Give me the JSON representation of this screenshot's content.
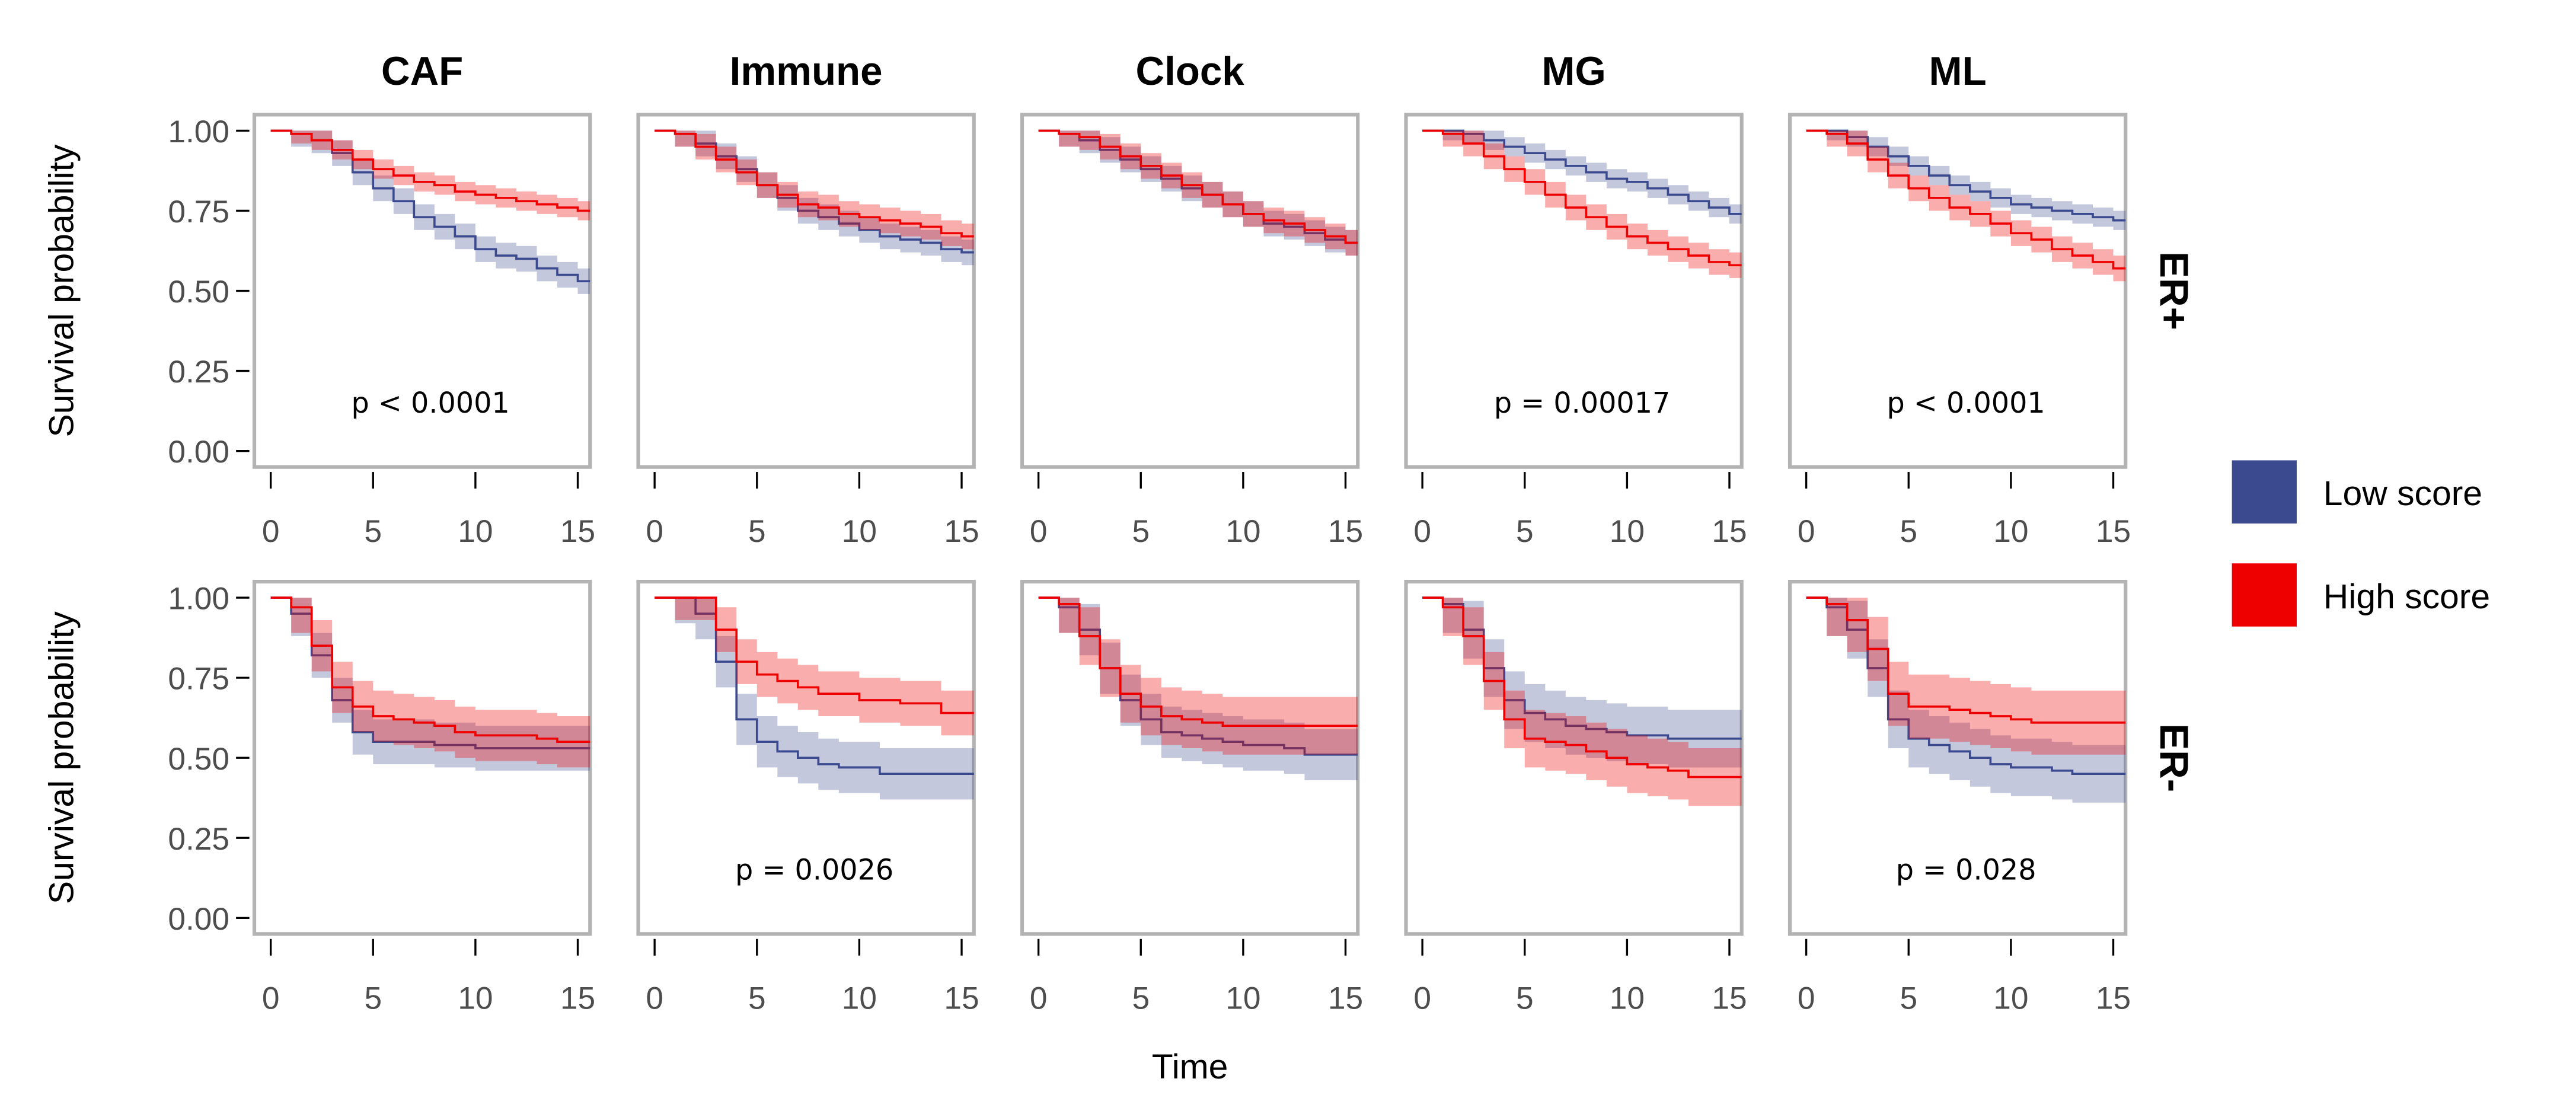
{
  "chart_data": {
    "type": "line",
    "subtype": "kaplan-meier-grid",
    "xlabel": "Time",
    "ylabel": "Survival probability",
    "xlim": [
      -0.8,
      15.6
    ],
    "ylim": [
      -0.05,
      1.05
    ],
    "x_ticks": [
      "0",
      "5",
      "10",
      "15"
    ],
    "x_tick_values": [
      0,
      5,
      10,
      15
    ],
    "y_ticks": [
      "1.00",
      "0.75",
      "0.50",
      "0.25",
      "0.00"
    ],
    "y_tick_values": [
      1.0,
      0.75,
      0.5,
      0.25,
      0.0
    ],
    "columns": [
      "CAF",
      "Immune",
      "Clock",
      "MG",
      "ML"
    ],
    "rows": [
      "ER+",
      "ER-"
    ],
    "legend": {
      "placement": "right",
      "entries": [
        {
          "label": "Low score",
          "color": "#3B4A8F"
        },
        {
          "label": "High score",
          "color": "#EE0000"
        }
      ]
    },
    "times": [
      0,
      1,
      2,
      3,
      4,
      5,
      6,
      7,
      8,
      9,
      10,
      11,
      12,
      13,
      14,
      15,
      15.8
    ],
    "panels": [
      {
        "row": "ER+",
        "col": "CAF",
        "pvalue": "p < 0.0001",
        "low": {
          "values": [
            1,
            0.99,
            0.97,
            0.93,
            0.87,
            0.82,
            0.78,
            0.73,
            0.7,
            0.67,
            0.63,
            0.61,
            0.6,
            0.57,
            0.55,
            0.53,
            0.52
          ],
          "ci": 0.04
        },
        "high": {
          "values": [
            1,
            0.99,
            0.97,
            0.94,
            0.91,
            0.88,
            0.86,
            0.84,
            0.83,
            0.81,
            0.8,
            0.79,
            0.78,
            0.77,
            0.76,
            0.75,
            0.75
          ],
          "ci": 0.03
        }
      },
      {
        "row": "ER+",
        "col": "Immune",
        "pvalue": "",
        "low": {
          "values": [
            1,
            0.99,
            0.96,
            0.92,
            0.88,
            0.83,
            0.79,
            0.75,
            0.73,
            0.71,
            0.69,
            0.67,
            0.66,
            0.65,
            0.63,
            0.62,
            0.61
          ],
          "ci": 0.04
        },
        "high": {
          "values": [
            1,
            0.99,
            0.95,
            0.91,
            0.87,
            0.83,
            0.8,
            0.77,
            0.76,
            0.74,
            0.73,
            0.72,
            0.71,
            0.7,
            0.68,
            0.67,
            0.66
          ],
          "ci": 0.04
        }
      },
      {
        "row": "ER+",
        "col": "Clock",
        "pvalue": "",
        "low": {
          "values": [
            1,
            0.99,
            0.97,
            0.94,
            0.91,
            0.88,
            0.85,
            0.82,
            0.8,
            0.77,
            0.74,
            0.71,
            0.7,
            0.68,
            0.66,
            0.65,
            0.64
          ],
          "ci": 0.04
        },
        "high": {
          "values": [
            1,
            0.99,
            0.98,
            0.95,
            0.92,
            0.89,
            0.86,
            0.83,
            0.8,
            0.77,
            0.74,
            0.72,
            0.71,
            0.69,
            0.67,
            0.65,
            0.63
          ],
          "ci": 0.04
        }
      },
      {
        "row": "ER+",
        "col": "MG",
        "pvalue": "p = 0.00017",
        "low": {
          "values": [
            1,
            1,
            0.99,
            0.97,
            0.95,
            0.93,
            0.91,
            0.89,
            0.87,
            0.85,
            0.84,
            0.82,
            0.8,
            0.78,
            0.76,
            0.74,
            0.73
          ],
          "ci": 0.03
        },
        "high": {
          "values": [
            1,
            0.99,
            0.96,
            0.92,
            0.88,
            0.84,
            0.8,
            0.76,
            0.73,
            0.7,
            0.67,
            0.65,
            0.63,
            0.61,
            0.59,
            0.58,
            0.57
          ],
          "ci": 0.04
        }
      },
      {
        "row": "ER+",
        "col": "ML",
        "pvalue": "p < 0.0001",
        "low": {
          "values": [
            1,
            1,
            0.98,
            0.95,
            0.92,
            0.89,
            0.86,
            0.83,
            0.81,
            0.79,
            0.77,
            0.76,
            0.75,
            0.74,
            0.73,
            0.72,
            0.72
          ],
          "ci": 0.03
        },
        "high": {
          "values": [
            1,
            0.99,
            0.96,
            0.91,
            0.86,
            0.82,
            0.79,
            0.76,
            0.74,
            0.71,
            0.68,
            0.66,
            0.63,
            0.61,
            0.59,
            0.57,
            0.55
          ],
          "ci": 0.04
        }
      },
      {
        "row": "ER-",
        "col": "CAF",
        "pvalue": "",
        "low": {
          "values": [
            1,
            0.95,
            0.82,
            0.68,
            0.58,
            0.55,
            0.55,
            0.55,
            0.54,
            0.54,
            0.53,
            0.53,
            0.53,
            0.53,
            0.53,
            0.53,
            0.53
          ],
          "ci": 0.07
        },
        "high": {
          "values": [
            1,
            0.97,
            0.85,
            0.72,
            0.66,
            0.63,
            0.62,
            0.61,
            0.6,
            0.58,
            0.57,
            0.57,
            0.57,
            0.56,
            0.55,
            0.55,
            0.55
          ],
          "ci": 0.08
        }
      },
      {
        "row": "ER-",
        "col": "Immune",
        "pvalue": "p = 0.0026",
        "low": {
          "values": [
            1,
            1,
            0.95,
            0.8,
            0.62,
            0.55,
            0.52,
            0.5,
            0.48,
            0.47,
            0.47,
            0.45,
            0.45,
            0.45,
            0.45,
            0.45,
            0.45
          ],
          "ci": 0.08
        },
        "high": {
          "values": [
            1,
            1,
            1,
            0.9,
            0.8,
            0.76,
            0.74,
            0.72,
            0.7,
            0.7,
            0.68,
            0.68,
            0.67,
            0.67,
            0.64,
            0.64,
            0.64
          ],
          "ci": 0.07
        }
      },
      {
        "row": "ER-",
        "col": "Clock",
        "pvalue": "",
        "low": {
          "values": [
            1,
            0.97,
            0.9,
            0.78,
            0.68,
            0.62,
            0.58,
            0.57,
            0.56,
            0.55,
            0.54,
            0.54,
            0.53,
            0.51,
            0.51,
            0.51,
            0.51
          ],
          "ci": 0.08
        },
        "high": {
          "values": [
            1,
            0.98,
            0.88,
            0.78,
            0.7,
            0.66,
            0.63,
            0.62,
            0.61,
            0.6,
            0.6,
            0.6,
            0.6,
            0.6,
            0.6,
            0.6,
            0.6
          ],
          "ci": 0.09
        }
      },
      {
        "row": "ER-",
        "col": "MG",
        "pvalue": "",
        "low": {
          "values": [
            1,
            0.98,
            0.9,
            0.78,
            0.68,
            0.64,
            0.62,
            0.6,
            0.59,
            0.58,
            0.57,
            0.57,
            0.56,
            0.56,
            0.56,
            0.56,
            0.56
          ],
          "ci": 0.09
        },
        "high": {
          "values": [
            1,
            0.97,
            0.88,
            0.74,
            0.62,
            0.56,
            0.55,
            0.54,
            0.52,
            0.5,
            0.48,
            0.47,
            0.46,
            0.44,
            0.44,
            0.44,
            0.44
          ],
          "ci": 0.09
        }
      },
      {
        "row": "ER-",
        "col": "ML",
        "pvalue": "p = 0.028",
        "low": {
          "values": [
            1,
            0.97,
            0.9,
            0.78,
            0.62,
            0.56,
            0.54,
            0.52,
            0.5,
            0.48,
            0.47,
            0.47,
            0.46,
            0.45,
            0.45,
            0.45,
            0.45
          ],
          "ci": 0.09
        },
        "high": {
          "values": [
            1,
            0.98,
            0.93,
            0.84,
            0.7,
            0.66,
            0.66,
            0.65,
            0.64,
            0.63,
            0.62,
            0.61,
            0.61,
            0.61,
            0.61,
            0.61,
            0.61
          ],
          "ci": 0.1
        }
      }
    ]
  }
}
